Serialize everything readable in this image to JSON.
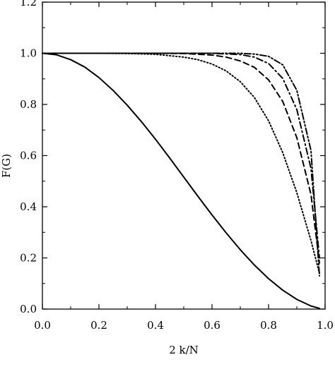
{
  "chart_data": {
    "type": "line",
    "title": "",
    "xlabel": "2 k/N",
    "ylabel": "F(G)",
    "xlim": [
      0.0,
      1.0
    ],
    "ylim": [
      0.0,
      1.2
    ],
    "xticks": [
      "0.0",
      "0.2",
      "0.4",
      "0.6",
      "0.8",
      "1.0"
    ],
    "yticks": [
      "0.0",
      "0.2",
      "0.4",
      "0.6",
      "0.8",
      "1.0",
      "1.2"
    ],
    "grid": false,
    "legend": "none",
    "series": [
      {
        "line_style": "solid",
        "x": [
          0.0,
          0.05,
          0.1,
          0.15,
          0.2,
          0.25,
          0.3,
          0.35,
          0.4,
          0.45,
          0.5,
          0.55,
          0.6,
          0.65,
          0.7,
          0.75,
          0.8,
          0.85,
          0.9,
          0.95,
          0.98
        ],
        "y": [
          1.0,
          0.994,
          0.975,
          0.946,
          0.905,
          0.855,
          0.797,
          0.733,
          0.664,
          0.591,
          0.516,
          0.441,
          0.368,
          0.298,
          0.232,
          0.172,
          0.119,
          0.074,
          0.038,
          0.012,
          0.003
        ]
      },
      {
        "line_style": "dotted",
        "x": [
          0.0,
          0.2,
          0.3,
          0.4,
          0.5,
          0.55,
          0.6,
          0.65,
          0.7,
          0.75,
          0.8,
          0.85,
          0.9,
          0.95,
          0.98
        ],
        "y": [
          1.0,
          1.0,
          0.999,
          0.996,
          0.985,
          0.975,
          0.958,
          0.931,
          0.889,
          0.827,
          0.736,
          0.612,
          0.455,
          0.268,
          0.14
        ]
      },
      {
        "line_style": "dashed",
        "x": [
          0.0,
          0.4,
          0.5,
          0.6,
          0.65,
          0.7,
          0.75,
          0.8,
          0.85,
          0.9,
          0.95,
          0.98
        ],
        "y": [
          1.0,
          1.0,
          0.999,
          0.993,
          0.985,
          0.97,
          0.945,
          0.896,
          0.812,
          0.67,
          0.448,
          0.18
        ]
      },
      {
        "line_style": "dash-dot",
        "x": [
          0.0,
          0.5,
          0.6,
          0.7,
          0.75,
          0.8,
          0.85,
          0.9,
          0.95,
          0.98
        ],
        "y": [
          1.0,
          1.0,
          1.0,
          0.995,
          0.985,
          0.96,
          0.902,
          0.78,
          0.55,
          0.2
        ]
      },
      {
        "line_style": "dash-dot-dot",
        "x": [
          0.0,
          0.6,
          0.7,
          0.75,
          0.8,
          0.85,
          0.9,
          0.95,
          0.98
        ],
        "y": [
          1.0,
          1.0,
          1.0,
          0.997,
          0.988,
          0.955,
          0.855,
          0.62,
          0.13
        ]
      }
    ]
  }
}
